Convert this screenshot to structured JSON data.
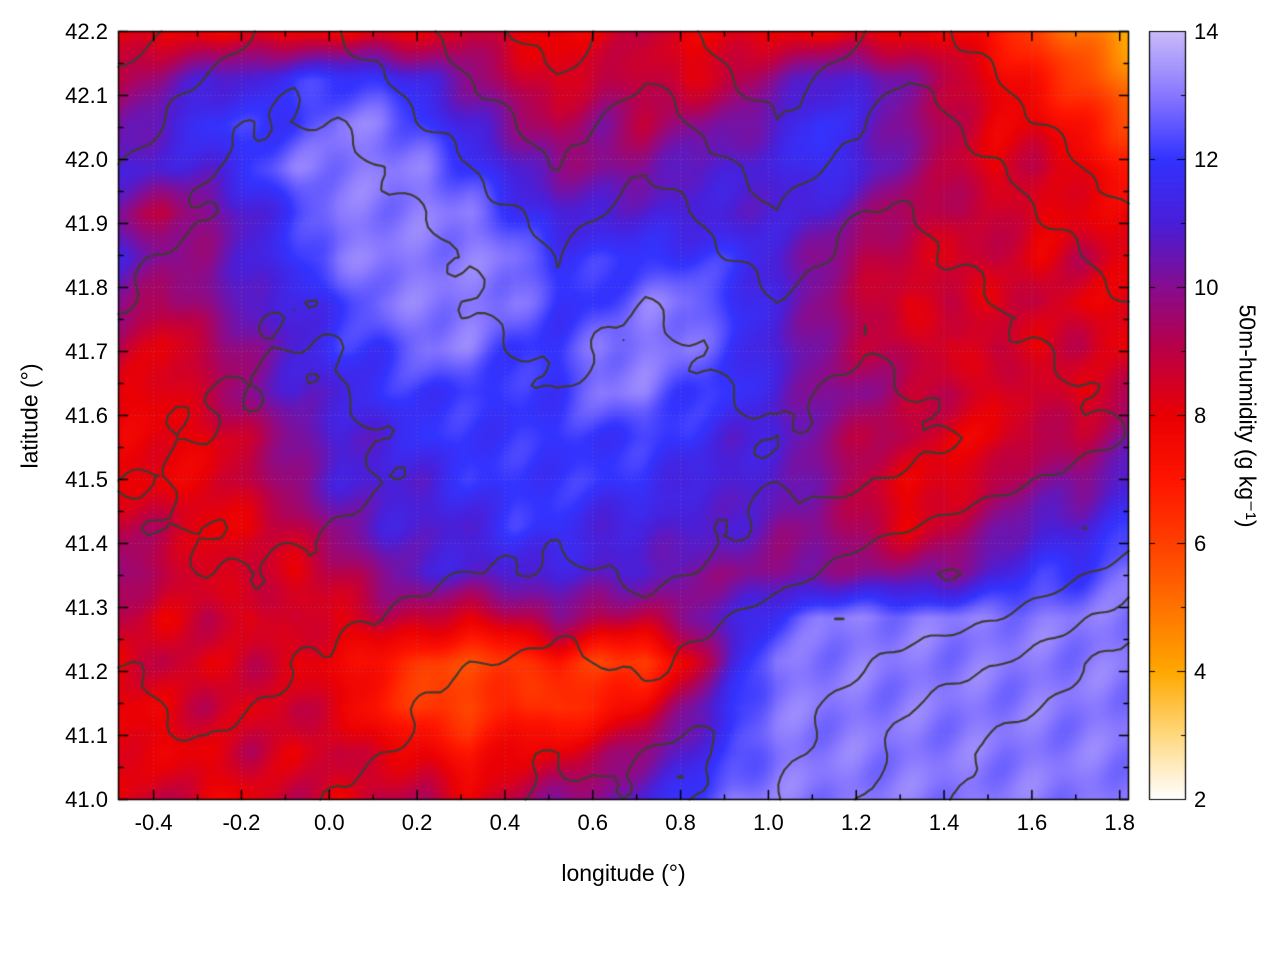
{
  "chart_data": {
    "type": "heatmap",
    "title": "",
    "xlabel": "longitude (°)",
    "ylabel": "latitude (°)",
    "colorbar_label": "50m-humidity (g kg⁻¹)",
    "xlim": [
      -0.48,
      1.82
    ],
    "ylim": [
      41.0,
      42.2
    ],
    "grid_on": true,
    "contour_color": "#3f3b33",
    "x_ticks": [
      {
        "v": -0.4,
        "label": "-0.4"
      },
      {
        "v": -0.2,
        "label": "-0.2"
      },
      {
        "v": 0.0,
        "label": "0.0"
      },
      {
        "v": 0.2,
        "label": "0.2"
      },
      {
        "v": 0.4,
        "label": "0.4"
      },
      {
        "v": 0.6,
        "label": "0.6"
      },
      {
        "v": 0.8,
        "label": "0.8"
      },
      {
        "v": 1.0,
        "label": "1.0"
      },
      {
        "v": 1.2,
        "label": "1.2"
      },
      {
        "v": 1.4,
        "label": "1.4"
      },
      {
        "v": 1.6,
        "label": "1.6"
      },
      {
        "v": 1.8,
        "label": "1.8"
      }
    ],
    "y_ticks": [
      {
        "v": 41.0,
        "label": "41.0"
      },
      {
        "v": 41.1,
        "label": "41.1"
      },
      {
        "v": 41.2,
        "label": "41.2"
      },
      {
        "v": 41.3,
        "label": "41.3"
      },
      {
        "v": 41.4,
        "label": "41.4"
      },
      {
        "v": 41.5,
        "label": "41.5"
      },
      {
        "v": 41.6,
        "label": "41.6"
      },
      {
        "v": 41.7,
        "label": "41.7"
      },
      {
        "v": 41.8,
        "label": "41.8"
      },
      {
        "v": 41.9,
        "label": "41.9"
      },
      {
        "v": 42.0,
        "label": "42.0"
      },
      {
        "v": 42.1,
        "label": "42.1"
      },
      {
        "v": 42.2,
        "label": "42.2"
      }
    ],
    "colorbar": {
      "min": 2,
      "max": 14,
      "ticks": [
        {
          "v": 2,
          "label": "2"
        },
        {
          "v": 4,
          "label": "4"
        },
        {
          "v": 6,
          "label": "6"
        },
        {
          "v": 8,
          "label": "8"
        },
        {
          "v": 10,
          "label": "10"
        },
        {
          "v": 12,
          "label": "12"
        },
        {
          "v": 14,
          "label": "14"
        }
      ]
    },
    "colormap_stops": [
      [
        2,
        "#ffffff"
      ],
      [
        3,
        "#ffd980"
      ],
      [
        4,
        "#ffa800"
      ],
      [
        5,
        "#ff7300"
      ],
      [
        6,
        "#ff4000"
      ],
      [
        7,
        "#ff1500"
      ],
      [
        8,
        "#ea0004"
      ],
      [
        9,
        "#bc0045"
      ],
      [
        10,
        "#880d8f"
      ],
      [
        11,
        "#4a1fd8"
      ],
      [
        12,
        "#3333ff"
      ],
      [
        13,
        "#8877ff"
      ],
      [
        14,
        "#c9baf9"
      ]
    ],
    "humidity_grid": {
      "cols": 24,
      "rows": 18,
      "lon_range": [
        -0.48,
        1.82
      ],
      "lat_range": [
        42.2,
        41.0
      ],
      "units": "g kg⁻¹",
      "values": [
        [
          8,
          8,
          8,
          8,
          8,
          8,
          8,
          8,
          9,
          8,
          8,
          8,
          9,
          8,
          8,
          8,
          8,
          8,
          8,
          8,
          7,
          6,
          5,
          4
        ],
        [
          9,
          10,
          11,
          11,
          12,
          12,
          12,
          11,
          10,
          9,
          8,
          9,
          9,
          8,
          9,
          10,
          11,
          11,
          10,
          9,
          8,
          7,
          6,
          5
        ],
        [
          10,
          11,
          12,
          12,
          12,
          13,
          13,
          12,
          11,
          10,
          9,
          10,
          9,
          10,
          10,
          11,
          12,
          11,
          10,
          9,
          8,
          8,
          7,
          6
        ],
        [
          11,
          11,
          11,
          12,
          13,
          13,
          13,
          13,
          12,
          11,
          10,
          10,
          10,
          11,
          11,
          11,
          12,
          11,
          10,
          9,
          8,
          9,
          8,
          7
        ],
        [
          10,
          9,
          10,
          11,
          12,
          13,
          13,
          13,
          13,
          12,
          11,
          11,
          11,
          11,
          11,
          11,
          11,
          10,
          9,
          9,
          9,
          8,
          8,
          8
        ],
        [
          11,
          10,
          10,
          11,
          12,
          13,
          13,
          13,
          13,
          13,
          12,
          12,
          12,
          12,
          12,
          11,
          10,
          9,
          9,
          8,
          9,
          8,
          9,
          8
        ],
        [
          10,
          9,
          10,
          11,
          11,
          12,
          13,
          13,
          13,
          13,
          12,
          12,
          13,
          13,
          12,
          11,
          10,
          9,
          8,
          9,
          8,
          9,
          8,
          8
        ],
        [
          9,
          8,
          9,
          10,
          11,
          12,
          12,
          13,
          13,
          12,
          12,
          13,
          13,
          13,
          12,
          11,
          10,
          9,
          9,
          8,
          9,
          8,
          9,
          8
        ],
        [
          8,
          8,
          9,
          10,
          11,
          11,
          12,
          12,
          12,
          12,
          12,
          13,
          13,
          12,
          12,
          11,
          10,
          10,
          9,
          9,
          8,
          9,
          8,
          9
        ],
        [
          8,
          8,
          8,
          9,
          10,
          11,
          11,
          12,
          12,
          12,
          12,
          12,
          12,
          12,
          11,
          11,
          10,
          9,
          9,
          8,
          8,
          9,
          9,
          10
        ],
        [
          8,
          8,
          8,
          9,
          10,
          11,
          11,
          11,
          12,
          12,
          12,
          12,
          12,
          11,
          11,
          11,
          10,
          9,
          8,
          8,
          9,
          10,
          10,
          11
        ],
        [
          9,
          9,
          8,
          8,
          9,
          10,
          11,
          11,
          11,
          12,
          12,
          11,
          11,
          11,
          11,
          10,
          10,
          9,
          8,
          9,
          10,
          11,
          11,
          12
        ],
        [
          10,
          9,
          8,
          9,
          8,
          9,
          10,
          11,
          11,
          11,
          11,
          11,
          11,
          10,
          10,
          10,
          10,
          10,
          10,
          10,
          11,
          12,
          12,
          13
        ],
        [
          9,
          8,
          9,
          8,
          9,
          8,
          9,
          9,
          8,
          9,
          10,
          9,
          9,
          10,
          11,
          12,
          13,
          13,
          13,
          13,
          13,
          13,
          13,
          13
        ],
        [
          8,
          9,
          8,
          9,
          8,
          8,
          7,
          6,
          6,
          6,
          7,
          6,
          6,
          8,
          11,
          13,
          13,
          13,
          13,
          13,
          13,
          13,
          13,
          13
        ],
        [
          8,
          8,
          9,
          8,
          9,
          8,
          7,
          6,
          6,
          7,
          6,
          7,
          8,
          10,
          12,
          13,
          13,
          13,
          13,
          13,
          13,
          13,
          13,
          13
        ],
        [
          8,
          8,
          8,
          9,
          8,
          9,
          8,
          8,
          7,
          8,
          8,
          9,
          10,
          11,
          12,
          13,
          13,
          13,
          13,
          13,
          13,
          13,
          13,
          13
        ],
        [
          8,
          9,
          8,
          8,
          9,
          8,
          9,
          9,
          8,
          9,
          10,
          10,
          11,
          12,
          13,
          13,
          13,
          13,
          13,
          13,
          13,
          13,
          13,
          13
        ]
      ]
    },
    "terrain_contours": {
      "levels": [
        200,
        400,
        600,
        800,
        1000
      ],
      "values": [
        [
          900,
          800,
          700,
          600,
          500,
          600,
          700,
          800,
          900,
          1000,
          1100,
          1000,
          900,
          1000,
          1100,
          1200,
          1100,
          1000,
          900,
          1000,
          1100,
          1200,
          1300,
          1400
        ],
        [
          800,
          700,
          600,
          500,
          400,
          500,
          600,
          700,
          800,
          900,
          1000,
          900,
          800,
          900,
          1000,
          1100,
          1000,
          900,
          800,
          900,
          1000,
          1100,
          1200,
          1300
        ],
        [
          700,
          600,
          500,
          400,
          400,
          400,
          500,
          600,
          700,
          800,
          900,
          800,
          700,
          800,
          900,
          1000,
          900,
          800,
          700,
          800,
          900,
          1000,
          1100,
          1200
        ],
        [
          600,
          500,
          400,
          350,
          300,
          350,
          400,
          500,
          600,
          700,
          800,
          700,
          600,
          700,
          800,
          900,
          800,
          700,
          700,
          700,
          800,
          900,
          1000,
          1100
        ],
        [
          500,
          450,
          400,
          300,
          250,
          300,
          350,
          400,
          500,
          600,
          700,
          600,
          500,
          600,
          700,
          800,
          700,
          600,
          600,
          650,
          700,
          800,
          900,
          1000
        ],
        [
          450,
          400,
          350,
          300,
          250,
          250,
          300,
          350,
          400,
          500,
          600,
          500,
          450,
          500,
          600,
          700,
          600,
          500,
          550,
          600,
          650,
          700,
          800,
          900
        ],
        [
          400,
          350,
          300,
          250,
          200,
          250,
          300,
          350,
          400,
          450,
          500,
          450,
          400,
          450,
          500,
          600,
          500,
          450,
          500,
          550,
          600,
          650,
          700,
          800
        ],
        [
          350,
          300,
          250,
          200,
          200,
          200,
          250,
          300,
          350,
          400,
          450,
          400,
          350,
          400,
          450,
          500,
          450,
          400,
          450,
          500,
          550,
          600,
          650,
          700
        ],
        [
          300,
          250,
          200,
          200,
          150,
          200,
          250,
          300,
          350,
          350,
          400,
          350,
          300,
          350,
          400,
          450,
          400,
          350,
          400,
          450,
          500,
          550,
          600,
          650
        ],
        [
          250,
          200,
          200,
          150,
          150,
          150,
          200,
          250,
          300,
          300,
          350,
          300,
          300,
          300,
          350,
          400,
          350,
          300,
          350,
          400,
          450,
          500,
          550,
          600
        ],
        [
          200,
          200,
          150,
          150,
          100,
          150,
          200,
          250,
          250,
          300,
          300,
          300,
          250,
          300,
          350,
          400,
          350,
          400,
          450,
          500,
          550,
          600,
          650,
          700
        ],
        [
          250,
          200,
          200,
          150,
          150,
          200,
          250,
          300,
          300,
          350,
          350,
          300,
          300,
          350,
          400,
          450,
          500,
          550,
          600,
          650,
          700,
          750,
          800,
          700
        ],
        [
          300,
          250,
          200,
          200,
          250,
          250,
          300,
          350,
          400,
          400,
          450,
          400,
          350,
          400,
          450,
          500,
          600,
          700,
          750,
          800,
          750,
          700,
          600,
          500
        ],
        [
          350,
          300,
          250,
          250,
          300,
          350,
          400,
          450,
          500,
          500,
          550,
          500,
          450,
          500,
          600,
          700,
          800,
          750,
          700,
          650,
          600,
          500,
          400,
          300
        ],
        [
          400,
          350,
          300,
          350,
          400,
          450,
          500,
          550,
          600,
          600,
          650,
          600,
          550,
          650,
          750,
          800,
          700,
          600,
          500,
          450,
          400,
          300,
          200,
          100
        ],
        [
          450,
          400,
          350,
          400,
          450,
          500,
          550,
          600,
          650,
          700,
          700,
          650,
          700,
          750,
          800,
          700,
          600,
          500,
          400,
          300,
          250,
          200,
          100,
          50
        ],
        [
          500,
          450,
          400,
          450,
          500,
          550,
          600,
          650,
          700,
          750,
          800,
          750,
          800,
          850,
          750,
          650,
          550,
          450,
          350,
          250,
          150,
          100,
          50,
          0
        ],
        [
          550,
          500,
          450,
          500,
          550,
          600,
          650,
          700,
          750,
          800,
          850,
          800,
          850,
          800,
          700,
          600,
          500,
          400,
          300,
          200,
          100,
          50,
          0,
          0
        ]
      ]
    }
  }
}
